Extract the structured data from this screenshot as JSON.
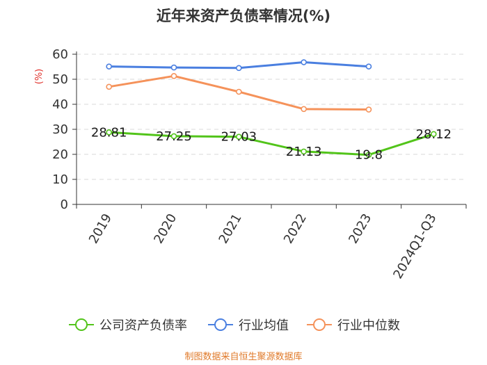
{
  "chart_data": {
    "type": "line",
    "title": "近年来资产负债率情况(%)",
    "ylabel": "(%)",
    "xlabel": "",
    "categories": [
      "2019",
      "2020",
      "2021",
      "2022",
      "2023",
      "2024Q1-Q3"
    ],
    "ylim": [
      0,
      60
    ],
    "yticks": [
      0,
      10,
      20,
      30,
      40,
      50,
      60
    ],
    "grid": true,
    "legend_position": "bottom",
    "series": [
      {
        "name": "公司资产负债率",
        "color": "#52c41a",
        "values": [
          28.81,
          27.25,
          27.03,
          21.13,
          19.8,
          28.12
        ],
        "labels": [
          "28.81",
          "27.25",
          "27.03",
          "21.13",
          "19.8",
          "28.12"
        ],
        "show_labels": true
      },
      {
        "name": "行业均值",
        "color": "#4a7fe0",
        "values": [
          55.1,
          54.7,
          54.5,
          56.8,
          55.1,
          null
        ],
        "show_labels": false
      },
      {
        "name": "行业中位数",
        "color": "#f5925a",
        "values": [
          47.0,
          51.3,
          45.0,
          38.1,
          37.9,
          null
        ],
        "show_labels": false
      }
    ]
  },
  "source": "制图数据来自恒生聚源数据库"
}
